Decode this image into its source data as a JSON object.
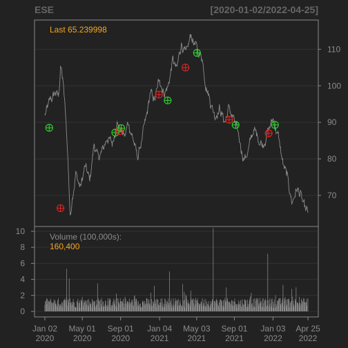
{
  "header": {
    "ticker": "ESE",
    "date_range": "[2020-01-02/2022-04-25]"
  },
  "price_panel": {
    "last_label": "Last 65.239998"
  },
  "volume_panel": {
    "label": "Volume (100,000s):",
    "last_value": "160,400"
  },
  "colors": {
    "background": "#222222",
    "panel_border": "#8a8a8a",
    "grid": "#333333",
    "price_line": "#8c8c8c",
    "volume_bar": "#8c8c8c",
    "accent_orange": "#f5a623",
    "marker_green": "#2ecc2e",
    "marker_red": "#e02020",
    "axis_text": "#8c8c8c"
  },
  "chart_data": {
    "type": "line",
    "theme": "chartSeries dark (quantmod-style)",
    "x_tick_labels": [
      {
        "date": "2020-01-02",
        "line1": "Jan 02",
        "line2": "2020"
      },
      {
        "date": "2020-05-01",
        "line1": "May 01",
        "line2": "2020"
      },
      {
        "date": "2020-09-01",
        "line1": "Sep 01",
        "line2": "2020"
      },
      {
        "date": "2021-01-04",
        "line1": "Jan 04",
        "line2": "2021"
      },
      {
        "date": "2021-05-03",
        "line1": "May 03",
        "line2": "2021"
      },
      {
        "date": "2021-09-01",
        "line1": "Sep 01",
        "line2": "2021"
      },
      {
        "date": "2022-01-03",
        "line1": "Jan 03",
        "line2": "2022"
      },
      {
        "date": "2022-04-25",
        "line1": "Apr 25",
        "line2": "2022"
      }
    ],
    "price": {
      "y_ticks": [
        70,
        80,
        90,
        100,
        110
      ],
      "ylim": [
        61.5,
        118
      ],
      "keypoints": [
        [
          "2020-01-02",
          92
        ],
        [
          "2020-01-20",
          96
        ],
        [
          "2020-02-05",
          98
        ],
        [
          "2020-02-15",
          97
        ],
        [
          "2020-02-22",
          106
        ],
        [
          "2020-03-01",
          100
        ],
        [
          "2020-03-10",
          90
        ],
        [
          "2020-03-18",
          76
        ],
        [
          "2020-03-23",
          64
        ],
        [
          "2020-03-30",
          70
        ],
        [
          "2020-04-10",
          76
        ],
        [
          "2020-04-25",
          72
        ],
        [
          "2020-05-10",
          78
        ],
        [
          "2020-05-25",
          74
        ],
        [
          "2020-06-08",
          84
        ],
        [
          "2020-06-20",
          80
        ],
        [
          "2020-07-05",
          82
        ],
        [
          "2020-07-20",
          86
        ],
        [
          "2020-08-05",
          84
        ],
        [
          "2020-08-20",
          90
        ],
        [
          "2020-09-01",
          88
        ],
        [
          "2020-09-15",
          86
        ],
        [
          "2020-09-25",
          90
        ],
        [
          "2020-10-10",
          86
        ],
        [
          "2020-10-25",
          80
        ],
        [
          "2020-11-05",
          84
        ],
        [
          "2020-11-15",
          88
        ],
        [
          "2020-11-25",
          92
        ],
        [
          "2020-12-05",
          98
        ],
        [
          "2020-12-20",
          96
        ],
        [
          "2021-01-04",
          102
        ],
        [
          "2021-01-18",
          98
        ],
        [
          "2021-02-01",
          100
        ],
        [
          "2021-02-15",
          107
        ],
        [
          "2021-02-28",
          104
        ],
        [
          "2021-03-15",
          112
        ],
        [
          "2021-03-30",
          108
        ],
        [
          "2021-04-15",
          114
        ],
        [
          "2021-05-03",
          110
        ],
        [
          "2021-05-20",
          108
        ],
        [
          "2021-06-01",
          101
        ],
        [
          "2021-06-15",
          96
        ],
        [
          "2021-07-01",
          92
        ],
        [
          "2021-07-15",
          94
        ],
        [
          "2021-08-01",
          90
        ],
        [
          "2021-08-15",
          94
        ],
        [
          "2021-09-01",
          90
        ],
        [
          "2021-09-15",
          86
        ],
        [
          "2021-10-01",
          80
        ],
        [
          "2021-10-15",
          82
        ],
        [
          "2021-11-01",
          88
        ],
        [
          "2021-11-15",
          86
        ],
        [
          "2021-12-01",
          84
        ],
        [
          "2021-12-20",
          88
        ],
        [
          "2022-01-03",
          91
        ],
        [
          "2022-01-20",
          86
        ],
        [
          "2022-02-05",
          78
        ],
        [
          "2022-02-20",
          74
        ],
        [
          "2022-03-05",
          68
        ],
        [
          "2022-03-20",
          72
        ],
        [
          "2022-04-01",
          70
        ],
        [
          "2022-04-15",
          66
        ],
        [
          "2022-04-25",
          65.24
        ]
      ],
      "last_value": 65.239998
    },
    "markers": [
      {
        "date": "2020-01-16",
        "value": 88.5,
        "color": "green"
      },
      {
        "date": "2020-02-21",
        "value": 66.5,
        "color": "red"
      },
      {
        "date": "2020-08-15",
        "value": 87.2,
        "color": "green"
      },
      {
        "date": "2020-08-28",
        "value": 87.6,
        "color": "red"
      },
      {
        "date": "2020-09-03",
        "value": 88.4,
        "color": "green"
      },
      {
        "date": "2021-01-02",
        "value": 97.6,
        "color": "red"
      },
      {
        "date": "2021-01-30",
        "value": 96.0,
        "color": "green"
      },
      {
        "date": "2021-03-28",
        "value": 105.0,
        "color": "red"
      },
      {
        "date": "2021-05-04",
        "value": 109.0,
        "color": "green"
      },
      {
        "date": "2021-08-15",
        "value": 90.7,
        "color": "red"
      },
      {
        "date": "2021-09-05",
        "value": 89.3,
        "color": "green"
      },
      {
        "date": "2021-12-20",
        "value": 87.0,
        "color": "red"
      },
      {
        "date": "2022-01-09",
        "value": 89.3,
        "color": "green"
      }
    ],
    "volume": {
      "units": "100,000s",
      "y_ticks": [
        0,
        2,
        4,
        6,
        8,
        10
      ],
      "ylim": [
        0,
        10.6
      ],
      "baseline": 1.3,
      "spikes": [
        {
          "date": "2020-03-12",
          "value": 5.3
        },
        {
          "date": "2020-03-20",
          "value": 4.1
        },
        {
          "date": "2020-06-19",
          "value": 3.5
        },
        {
          "date": "2020-12-18",
          "value": 3.2
        },
        {
          "date": "2021-02-05",
          "value": 5.0
        },
        {
          "date": "2021-03-19",
          "value": 3.4
        },
        {
          "date": "2021-06-25",
          "value": 10.4
        },
        {
          "date": "2021-08-06",
          "value": 3.0
        },
        {
          "date": "2021-12-17",
          "value": 7.2
        },
        {
          "date": "2022-02-04",
          "value": 3.3
        },
        {
          "date": "2022-03-18",
          "value": 3.0
        }
      ],
      "last_value": 1.604
    }
  }
}
